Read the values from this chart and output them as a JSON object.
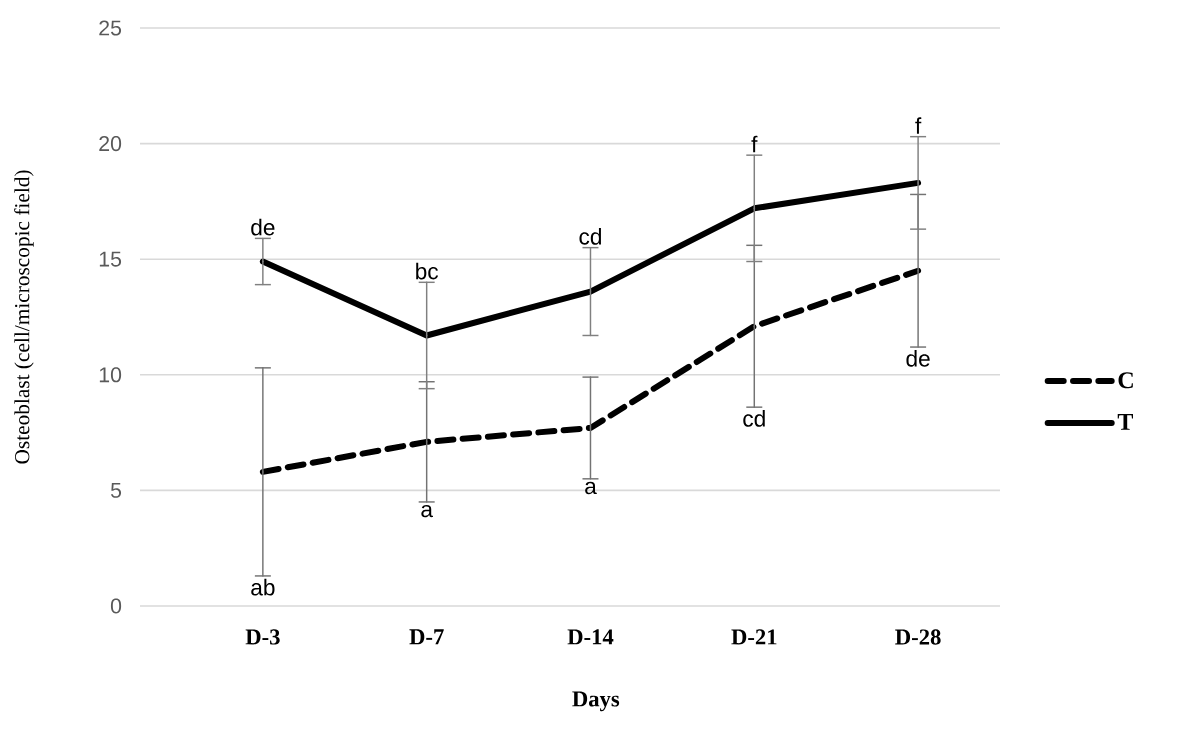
{
  "chart_data": {
    "type": "line",
    "xlabel": "Days",
    "ylabel": "Osteoblast (cell/microscopic field)",
    "categories": [
      "D-3",
      "D-7",
      "D-14",
      "D-21",
      "D-28"
    ],
    "series": [
      {
        "name": "C",
        "color": "#000000",
        "line_style": "dashed",
        "values": [
          5.8,
          7.1,
          7.7,
          12.1,
          14.5
        ],
        "errors": [
          4.5,
          2.6,
          2.2,
          3.5,
          3.3
        ]
      },
      {
        "name": "T",
        "color": "#000000",
        "line_style": "solid",
        "values": [
          14.9,
          11.7,
          13.6,
          17.2,
          18.3
        ],
        "errors": [
          1.0,
          2.3,
          1.9,
          2.3,
          2.0
        ]
      }
    ],
    "ylim": [
      0,
      25
    ],
    "yticks": [
      0,
      5,
      10,
      15,
      20,
      25
    ],
    "grid": "y",
    "legend": "right",
    "annotations": [
      "ab",
      "de",
      "a",
      "bc",
      "a",
      "cd",
      "cd",
      "f",
      "de",
      "f"
    ]
  }
}
